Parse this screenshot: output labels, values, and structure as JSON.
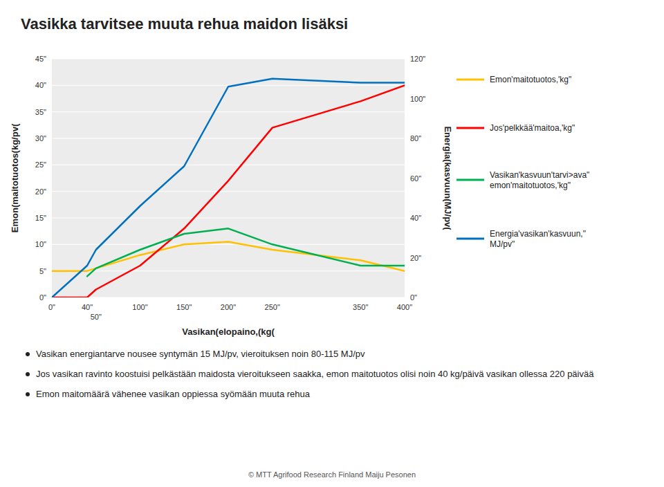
{
  "chart_data": {
    "type": "line",
    "title": "Vasikka tarvitsee muuta rehua maidon lisäksi",
    "x_label": "Vasikan(elopaino,(kg(",
    "y_label": "Emon(maitotuotos(kg/pv(",
    "y2_label": "Energia(kasvuun(MJ/pv(",
    "x": [
      0,
      40,
      50,
      100,
      150,
      200,
      250,
      350,
      400
    ],
    "xlim": [
      0,
      400
    ],
    "xticks": [
      {
        "value": 0,
        "label": "0\""
      },
      {
        "value": 40,
        "label": "40\""
      },
      {
        "value": 50,
        "label": "50\""
      },
      {
        "value": 100,
        "label": "100\""
      },
      {
        "value": 150,
        "label": "150\""
      },
      {
        "value": 200,
        "label": "200\""
      },
      {
        "value": 250,
        "label": "250\""
      },
      {
        "value": 350,
        "label": "350\""
      },
      {
        "value": 400,
        "label": "400\""
      }
    ],
    "ylim": [
      0,
      45
    ],
    "yticks": [
      {
        "value": 0,
        "label": "0\""
      },
      {
        "value": 5,
        "label": "5\""
      },
      {
        "value": 10,
        "label": "10\""
      },
      {
        "value": 15,
        "label": "15\""
      },
      {
        "value": 20,
        "label": "20\""
      },
      {
        "value": 25,
        "label": "25\""
      },
      {
        "value": 30,
        "label": "30\""
      },
      {
        "value": 35,
        "label": "35\""
      },
      {
        "value": 40,
        "label": "40\""
      },
      {
        "value": 45,
        "label": "45\""
      }
    ],
    "y2lim": [
      0,
      120
    ],
    "y2ticks": [
      {
        "value": 0,
        "label": "0\""
      },
      {
        "value": 20,
        "label": "20\""
      },
      {
        "value": 40,
        "label": "40\""
      },
      {
        "value": 60,
        "label": "60\""
      },
      {
        "value": 80,
        "label": "80\""
      },
      {
        "value": 100,
        "label": "100\""
      },
      {
        "value": 120,
        "label": "120\""
      }
    ],
    "grid": true,
    "legend": "right",
    "series": [
      {
        "name": "Emon'maitotuotos,'kg\"",
        "color": "#FFC000",
        "values": [
          5,
          5,
          5.5,
          8,
          10,
          10.5,
          9,
          7,
          5
        ]
      },
      {
        "name": "Jos'pelkkää'maitoa,'kg\"",
        "color": "#FF0000",
        "values": [
          0,
          0,
          1.5,
          6,
          13,
          22,
          32,
          37,
          40
        ]
      },
      {
        "name": "Vasikan'kasvuun'tarvi>ava\"\nemon'maitotuotos,'kg\"",
        "color": "#00B050",
        "values": [
          null,
          4,
          5.5,
          9,
          12,
          13,
          10,
          6,
          6
        ]
      },
      {
        "name": "Energia'vasikan'kasvuun,\"\nMJ/pv\"",
        "color": "#0070C0",
        "axis": "y2",
        "values": [
          0,
          16,
          24,
          46,
          66,
          106,
          110,
          108,
          108
        ]
      }
    ],
    "annotations": [
      "Vasikan energiantarve nousee syntymän 15 MJ/pv, vieroituksen noin 80-115 MJ/pv",
      "Jos vasikan ravinto koostuisi pelkästään maidosta vieroitukseen saakka, emon maitotuotos olisi noin 40 kg/päivä vasikan ollessa 220 päivää",
      "Emon maitomäärä vähenee vasikan oppiessa syömään muuta rehua"
    ],
    "footnote": "© MTT Agrifood Research Finland Maiju Pesonen"
  }
}
